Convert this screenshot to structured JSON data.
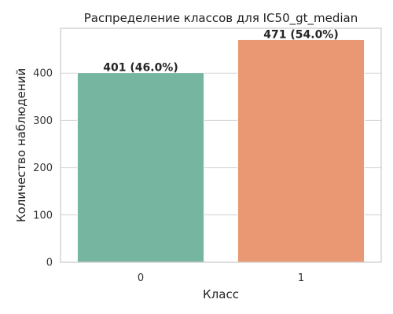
{
  "chart_data": {
    "type": "bar",
    "title": "Распределение классов для IC50_gt_median",
    "xlabel": "Класс",
    "ylabel": "Количество наблюдений",
    "categories": [
      "0",
      "1"
    ],
    "values": [
      401,
      471
    ],
    "data_labels": [
      "401 (46.0%)",
      "471 (54.0%)"
    ],
    "colors": [
      "#76b6a0",
      "#ea9873"
    ],
    "ylim": [
      0,
      495
    ],
    "yticks": [
      0,
      100,
      200,
      300,
      400
    ],
    "ytick_labels": [
      "0",
      "100",
      "200",
      "300",
      "400"
    ],
    "grid": true,
    "legend": "none"
  }
}
